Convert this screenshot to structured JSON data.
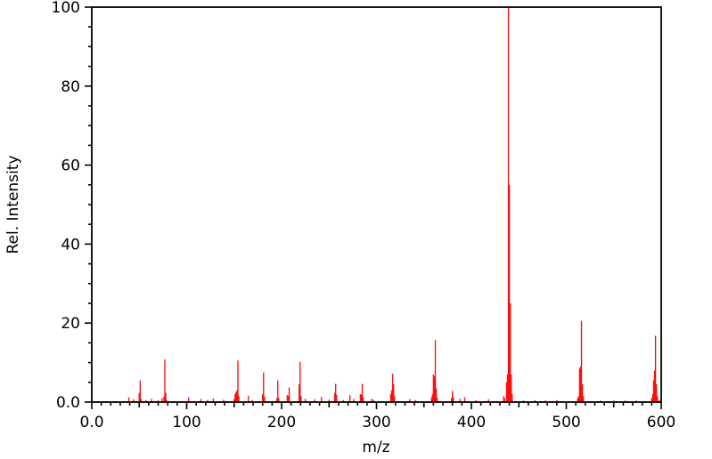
{
  "figure": {
    "background_color": "#ffffff",
    "axis_color": "#000000",
    "peak_color": "#fa0f0c"
  },
  "chart_data": {
    "type": "bar",
    "subtype": "mass-spectrum-stick-plot",
    "title": "",
    "xlabel": "m/z",
    "ylabel": "Rel. Intensity",
    "xlim": [
      0,
      600
    ],
    "ylim": [
      0,
      100
    ],
    "grid": false,
    "legend": null,
    "x_major_ticks": [
      0,
      100,
      200,
      300,
      400,
      500,
      600
    ],
    "x_major_tick_labels": [
      "0.0",
      "100",
      "200",
      "300",
      "400",
      "500",
      "600"
    ],
    "x_minor_tick_interval": 10,
    "x_medium_tick_interval": 50,
    "y_major_ticks": [
      0,
      20,
      40,
      60,
      80,
      100
    ],
    "y_major_tick_labels": [
      "0.0",
      "20",
      "40",
      "60",
      "80",
      "100"
    ],
    "y_minor_tick_interval": 5,
    "series": [
      {
        "name": "relative-intensity-peaks",
        "color": "#fa0f0c",
        "points": [
          [
            39,
            1.2
          ],
          [
            44,
            0.7
          ],
          [
            50,
            2.3
          ],
          [
            51,
            5.5
          ],
          [
            52,
            0.8
          ],
          [
            57,
            0.5
          ],
          [
            63,
            0.8
          ],
          [
            70,
            0.5
          ],
          [
            74,
            1.0
          ],
          [
            76,
            1.3
          ],
          [
            77,
            10.8
          ],
          [
            78,
            2.3
          ],
          [
            79,
            0.5
          ],
          [
            102,
            1.2
          ],
          [
            115,
            0.8
          ],
          [
            122,
            0.5
          ],
          [
            128,
            0.9
          ],
          [
            139,
            0.6
          ],
          [
            150,
            0.8
          ],
          [
            151,
            2.0
          ],
          [
            152,
            2.5
          ],
          [
            153,
            3.0
          ],
          [
            154,
            10.5
          ],
          [
            155,
            1.5
          ],
          [
            165,
            1.6
          ],
          [
            169,
            0.5
          ],
          [
            180,
            2.0
          ],
          [
            181,
            7.5
          ],
          [
            182,
            1.3
          ],
          [
            195,
            1.0
          ],
          [
            196,
            5.5
          ],
          [
            197,
            1.0
          ],
          [
            206,
            1.8
          ],
          [
            207,
            1.6
          ],
          [
            208,
            3.7
          ],
          [
            218.5,
            4.5
          ],
          [
            219.5,
            10.2
          ],
          [
            220.5,
            1.5
          ],
          [
            225,
            0.8
          ],
          [
            235,
            0.7
          ],
          [
            242,
            1.3
          ],
          [
            250,
            0.6
          ],
          [
            256,
            2.3
          ],
          [
            257,
            4.6
          ],
          [
            258,
            1.8
          ],
          [
            265,
            0.5
          ],
          [
            272,
            1.8
          ],
          [
            276,
            0.8
          ],
          [
            283,
            2.0
          ],
          [
            284,
            1.8
          ],
          [
            285,
            4.6
          ],
          [
            286,
            1.2
          ],
          [
            295,
            0.8
          ],
          [
            297,
            0.6
          ],
          [
            315,
            2.0
          ],
          [
            316,
            3.0
          ],
          [
            317,
            7.2
          ],
          [
            318,
            4.5
          ],
          [
            319,
            1.5
          ],
          [
            335,
            0.7
          ],
          [
            341,
            0.5
          ],
          [
            358,
            1.2
          ],
          [
            359,
            2.0
          ],
          [
            360,
            7.0
          ],
          [
            361,
            6.5
          ],
          [
            362,
            15.7
          ],
          [
            363,
            3.5
          ],
          [
            364,
            1.0
          ],
          [
            379,
            1.0
          ],
          [
            380,
            2.8
          ],
          [
            381,
            1.2
          ],
          [
            388,
            0.8
          ],
          [
            393,
            1.2
          ],
          [
            405,
            0.5
          ],
          [
            418,
            0.7
          ],
          [
            434,
            1.5
          ],
          [
            435,
            1.0
          ],
          [
            437,
            5.0
          ],
          [
            438,
            7.0
          ],
          [
            439,
            100.0
          ],
          [
            440,
            55.0
          ],
          [
            441,
            25.0
          ],
          [
            442,
            7.0
          ],
          [
            443,
            2.0
          ],
          [
            455,
            0.4
          ],
          [
            467,
            0.5
          ],
          [
            478,
            0.4
          ],
          [
            490,
            0.5
          ],
          [
            512,
            1.0
          ],
          [
            513,
            1.5
          ],
          [
            514,
            8.5
          ],
          [
            515,
            9.0
          ],
          [
            516,
            20.5
          ],
          [
            517,
            4.5
          ],
          [
            518,
            1.5
          ],
          [
            536,
            0.4
          ],
          [
            550,
            0.4
          ],
          [
            562,
            0.4
          ],
          [
            574,
            0.4
          ],
          [
            590,
            1.0
          ],
          [
            591,
            2.0
          ],
          [
            592,
            5.5
          ],
          [
            593,
            8.0
          ],
          [
            594,
            16.8
          ],
          [
            595,
            4.5
          ],
          [
            596,
            1.5
          ],
          [
            598,
            0.5
          ]
        ]
      }
    ]
  }
}
